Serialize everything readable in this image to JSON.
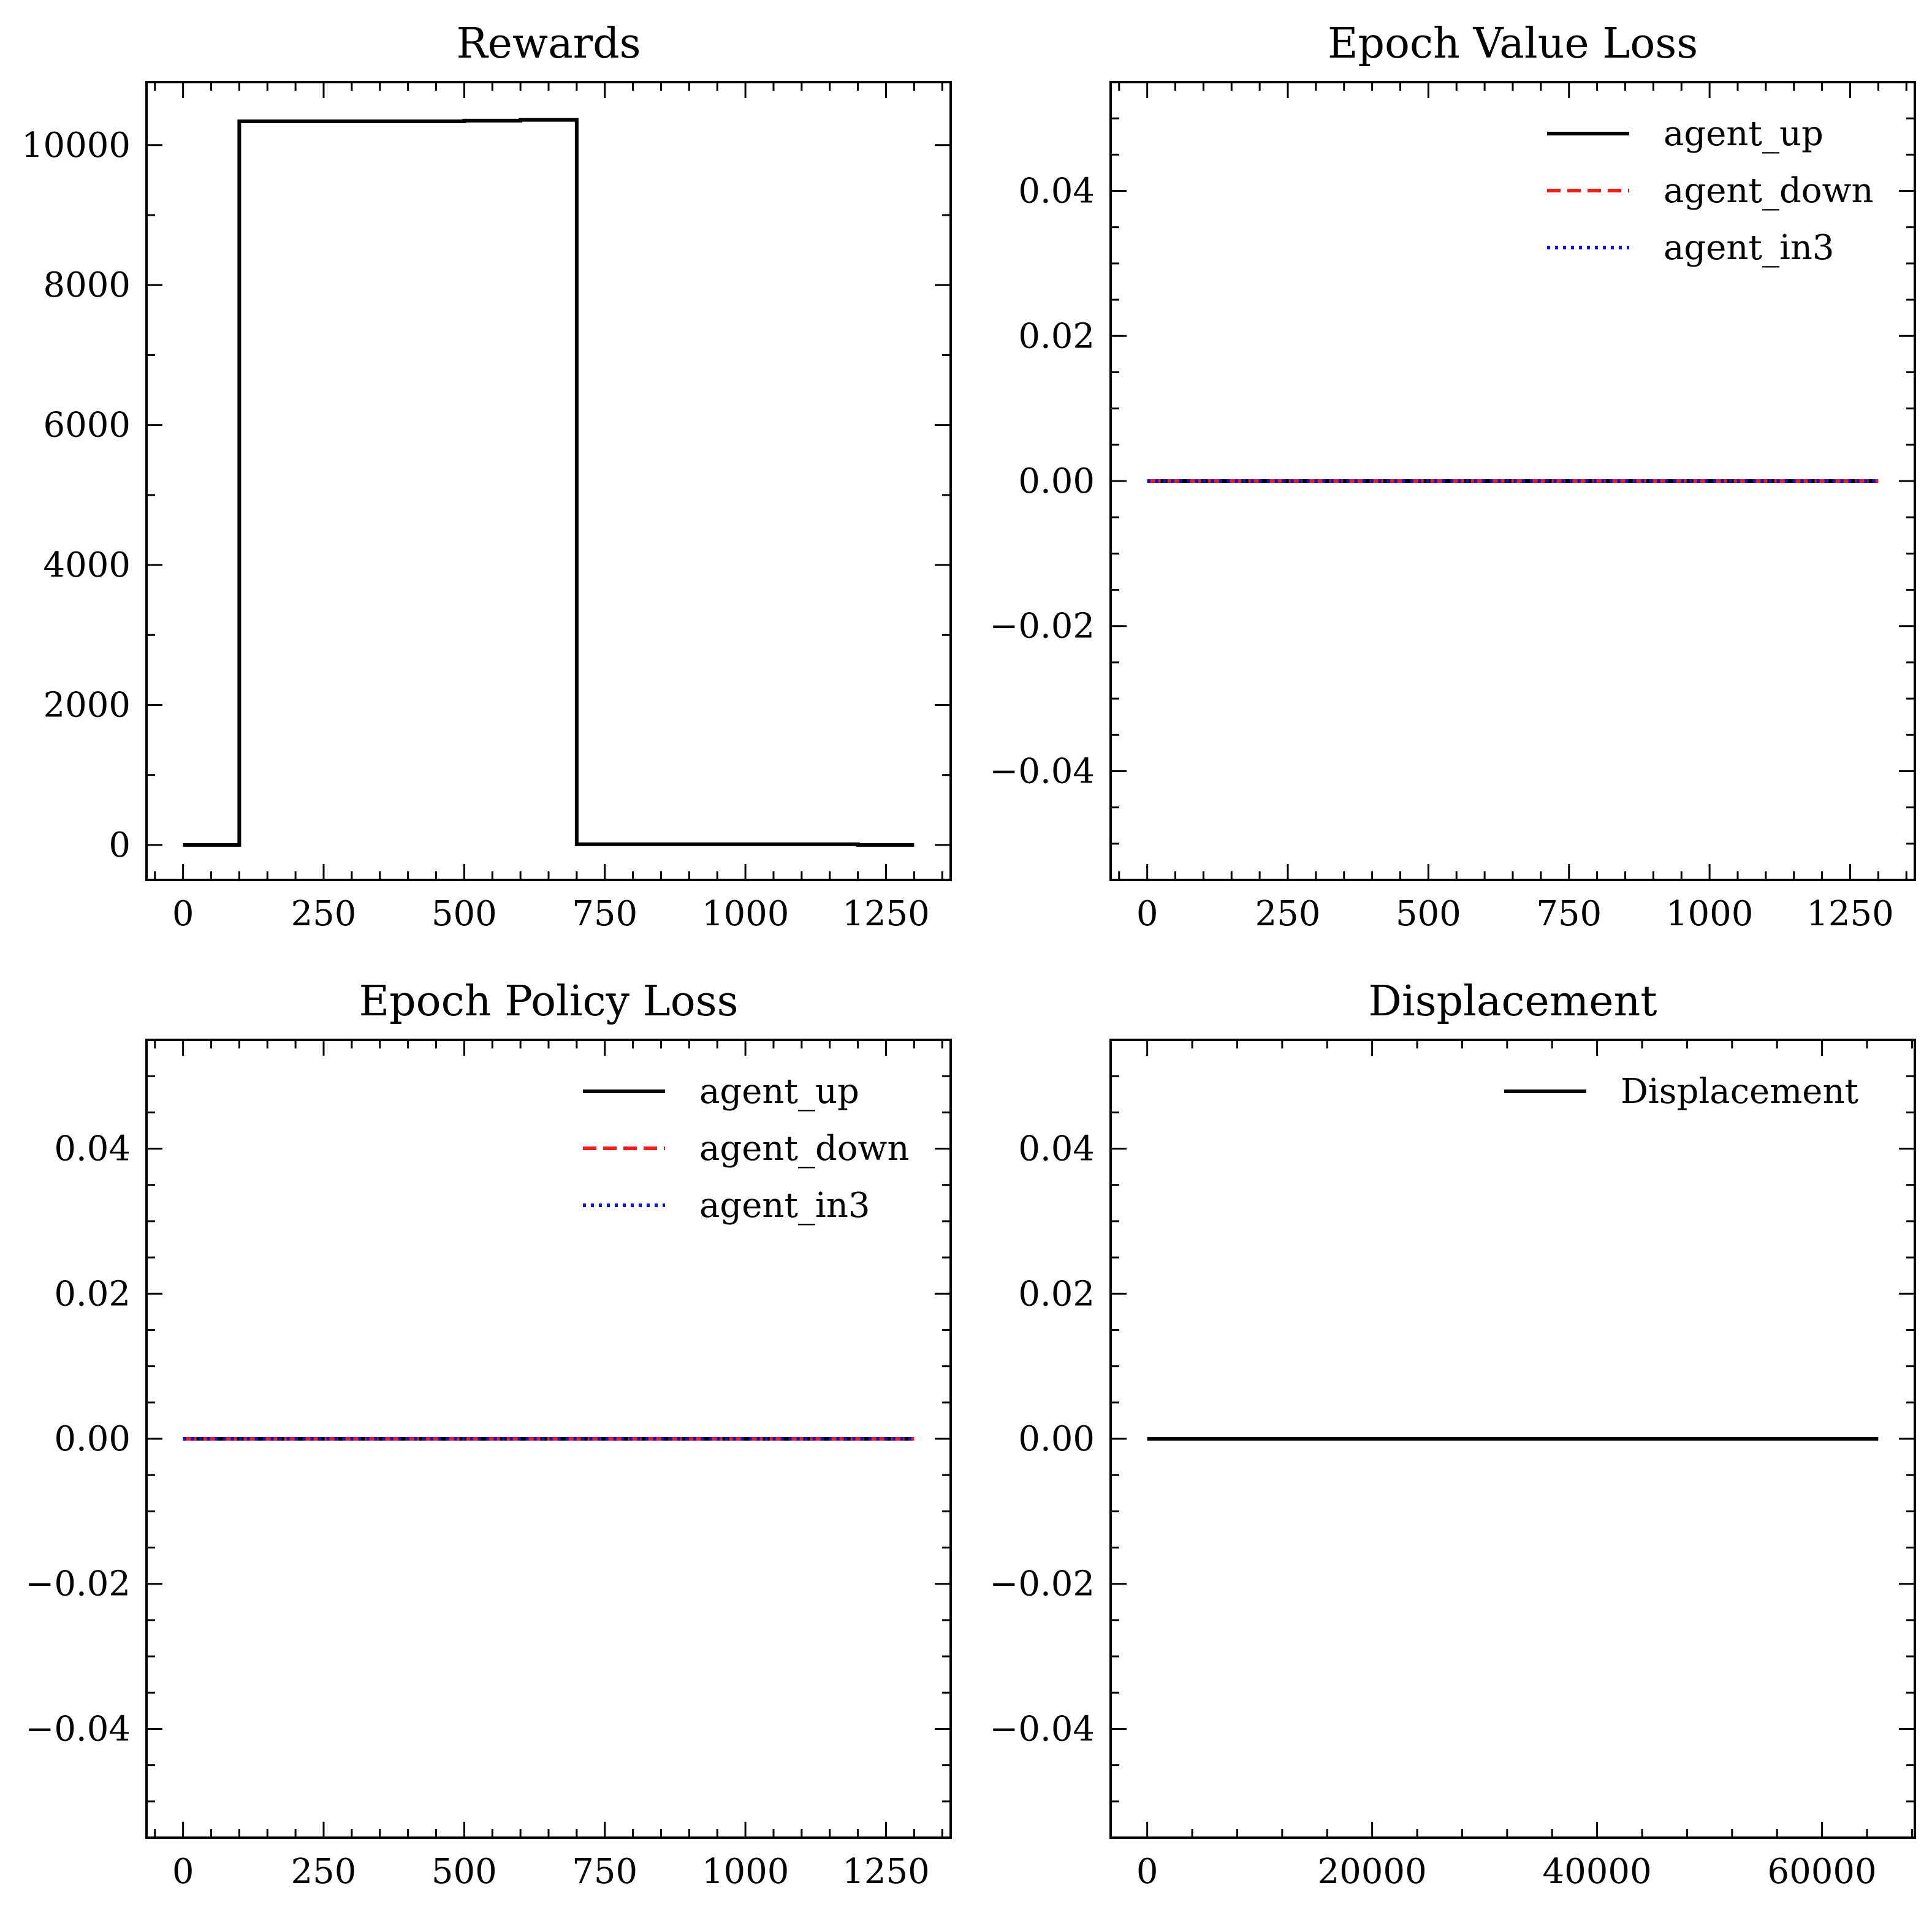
{
  "chart_data": [
    {
      "type": "line",
      "title": "Rewards",
      "xlabel": "",
      "ylabel": "",
      "xlim": [
        -65,
        1365
      ],
      "ylim": [
        -500,
        10900
      ],
      "xticks": [
        0,
        250,
        500,
        750,
        1000,
        1250
      ],
      "xtick_labels": [
        "0",
        "250",
        "500",
        "750",
        "1000",
        "1250"
      ],
      "yticks": [
        0,
        2000,
        4000,
        6000,
        8000,
        10000
      ],
      "ytick_labels": [
        "0",
        "2000",
        "4000",
        "6000",
        "8000",
        "10000"
      ],
      "xminor": 50,
      "yminor": 1000,
      "legend": null,
      "series": [
        {
          "color": "#000000",
          "dash": "solid",
          "points": [
            [
              0,
              0
            ],
            [
              100,
              0
            ],
            [
              100,
              10340
            ],
            [
              500,
              10340
            ],
            [
              500,
              10350
            ],
            [
              600,
              10350
            ],
            [
              600,
              10360
            ],
            [
              700,
              10360
            ],
            [
              700,
              10
            ],
            [
              1200,
              10
            ],
            [
              1200,
              0
            ],
            [
              1300,
              0
            ]
          ]
        }
      ]
    },
    {
      "type": "line",
      "title": "Epoch Value Loss",
      "xlabel": "",
      "ylabel": "",
      "xlim": [
        -65,
        1365
      ],
      "ylim": [
        -0.055,
        0.055
      ],
      "xticks": [
        0,
        250,
        500,
        750,
        1000,
        1250
      ],
      "xtick_labels": [
        "0",
        "250",
        "500",
        "750",
        "1000",
        "1250"
      ],
      "yticks": [
        -0.04,
        -0.02,
        0.0,
        0.02,
        0.04
      ],
      "ytick_labels": [
        "−0.04",
        "−0.02",
        "0.00",
        "0.02",
        "0.04"
      ],
      "xminor": 50,
      "yminor": 0.005,
      "legend": "top-right",
      "series": [
        {
          "name": "agent_up",
          "color": "#000000",
          "dash": "solid",
          "points": [
            [
              0,
              0
            ],
            [
              1300,
              0
            ]
          ]
        },
        {
          "name": "agent_down",
          "color": "#ee1c1c",
          "dash": "dashed",
          "points": [
            [
              0,
              0
            ],
            [
              1300,
              0
            ]
          ]
        },
        {
          "name": "agent_in3",
          "color": "#1010e0",
          "dash": "dotted",
          "points": [
            [
              0,
              0
            ],
            [
              1300,
              0
            ]
          ]
        }
      ]
    },
    {
      "type": "line",
      "title": "Epoch Policy Loss",
      "xlabel": "",
      "ylabel": "",
      "xlim": [
        -65,
        1365
      ],
      "ylim": [
        -0.055,
        0.055
      ],
      "xticks": [
        0,
        250,
        500,
        750,
        1000,
        1250
      ],
      "xtick_labels": [
        "0",
        "250",
        "500",
        "750",
        "1000",
        "1250"
      ],
      "yticks": [
        -0.04,
        -0.02,
        0.0,
        0.02,
        0.04
      ],
      "ytick_labels": [
        "−0.04",
        "−0.02",
        "0.00",
        "0.02",
        "0.04"
      ],
      "xminor": 50,
      "yminor": 0.005,
      "legend": "top-right",
      "series": [
        {
          "name": "agent_up",
          "color": "#000000",
          "dash": "solid",
          "points": [
            [
              0,
              0
            ],
            [
              1300,
              0
            ]
          ]
        },
        {
          "name": "agent_down",
          "color": "#ee1c1c",
          "dash": "dashed",
          "points": [
            [
              0,
              0
            ],
            [
              1300,
              0
            ]
          ]
        },
        {
          "name": "agent_in3",
          "color": "#1010e0",
          "dash": "dotted",
          "points": [
            [
              0,
              0
            ],
            [
              1300,
              0
            ]
          ]
        }
      ]
    },
    {
      "type": "line",
      "title": "Displacement",
      "xlabel": "",
      "ylabel": "",
      "xlim": [
        -3250,
        68250
      ],
      "ylim": [
        -0.055,
        0.055
      ],
      "xticks": [
        0,
        20000,
        40000,
        60000
      ],
      "xtick_labels": [
        "0",
        "20000",
        "40000",
        "60000"
      ],
      "yticks": [
        -0.04,
        -0.02,
        0.0,
        0.02,
        0.04
      ],
      "ytick_labels": [
        "−0.04",
        "−0.02",
        "0.00",
        "0.02",
        "0.04"
      ],
      "xminor": 4000,
      "yminor": 0.005,
      "legend": "top-right",
      "series": [
        {
          "name": "Displacement",
          "color": "#000000",
          "dash": "solid",
          "points": [
            [
              0,
              0
            ],
            [
              65000,
              0
            ]
          ]
        }
      ]
    }
  ]
}
